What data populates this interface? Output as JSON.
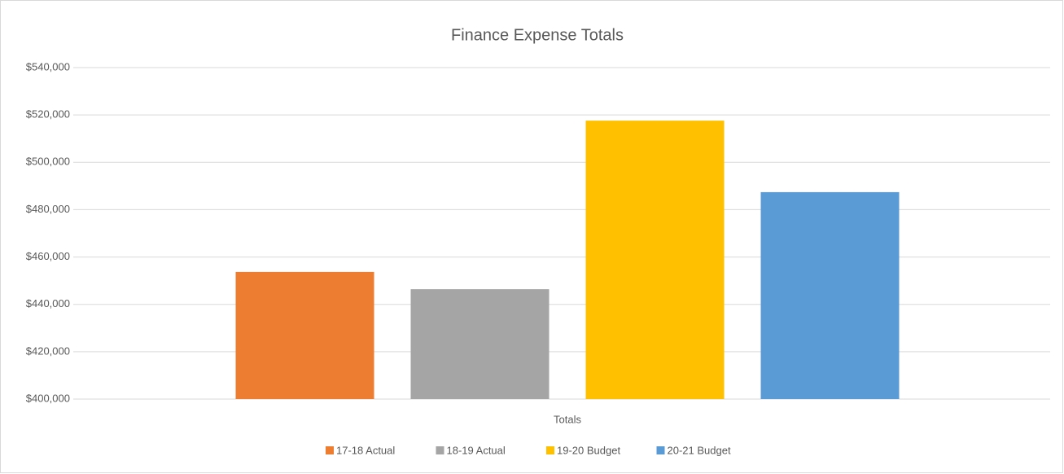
{
  "chart_data": {
    "type": "bar",
    "title": "Finance Expense Totals",
    "categories": [
      "Totals"
    ],
    "series": [
      {
        "name": "17-18 Actual",
        "color": "#ed7d31",
        "values": [
          453700
        ]
      },
      {
        "name": "18-19 Actual",
        "color": "#a5a5a5",
        "values": [
          446400
        ]
      },
      {
        "name": "19-20 Budget",
        "color": "#ffc000",
        "values": [
          517600
        ]
      },
      {
        "name": "20-21 Budget",
        "color": "#5b9bd5",
        "values": [
          487400
        ]
      }
    ],
    "ylim": [
      400000,
      540000
    ],
    "yticks": [
      {
        "value": 400000,
        "label": "$400,000"
      },
      {
        "value": 420000,
        "label": "$420,000"
      },
      {
        "value": 440000,
        "label": "$440,000"
      },
      {
        "value": 460000,
        "label": "$460,000"
      },
      {
        "value": 480000,
        "label": "$480,000"
      },
      {
        "value": 500000,
        "label": "$500,000"
      },
      {
        "value": 520000,
        "label": "$520,000"
      },
      {
        "value": 540000,
        "label": "$540,000"
      }
    ],
    "grid": true,
    "legend": "bottom"
  }
}
